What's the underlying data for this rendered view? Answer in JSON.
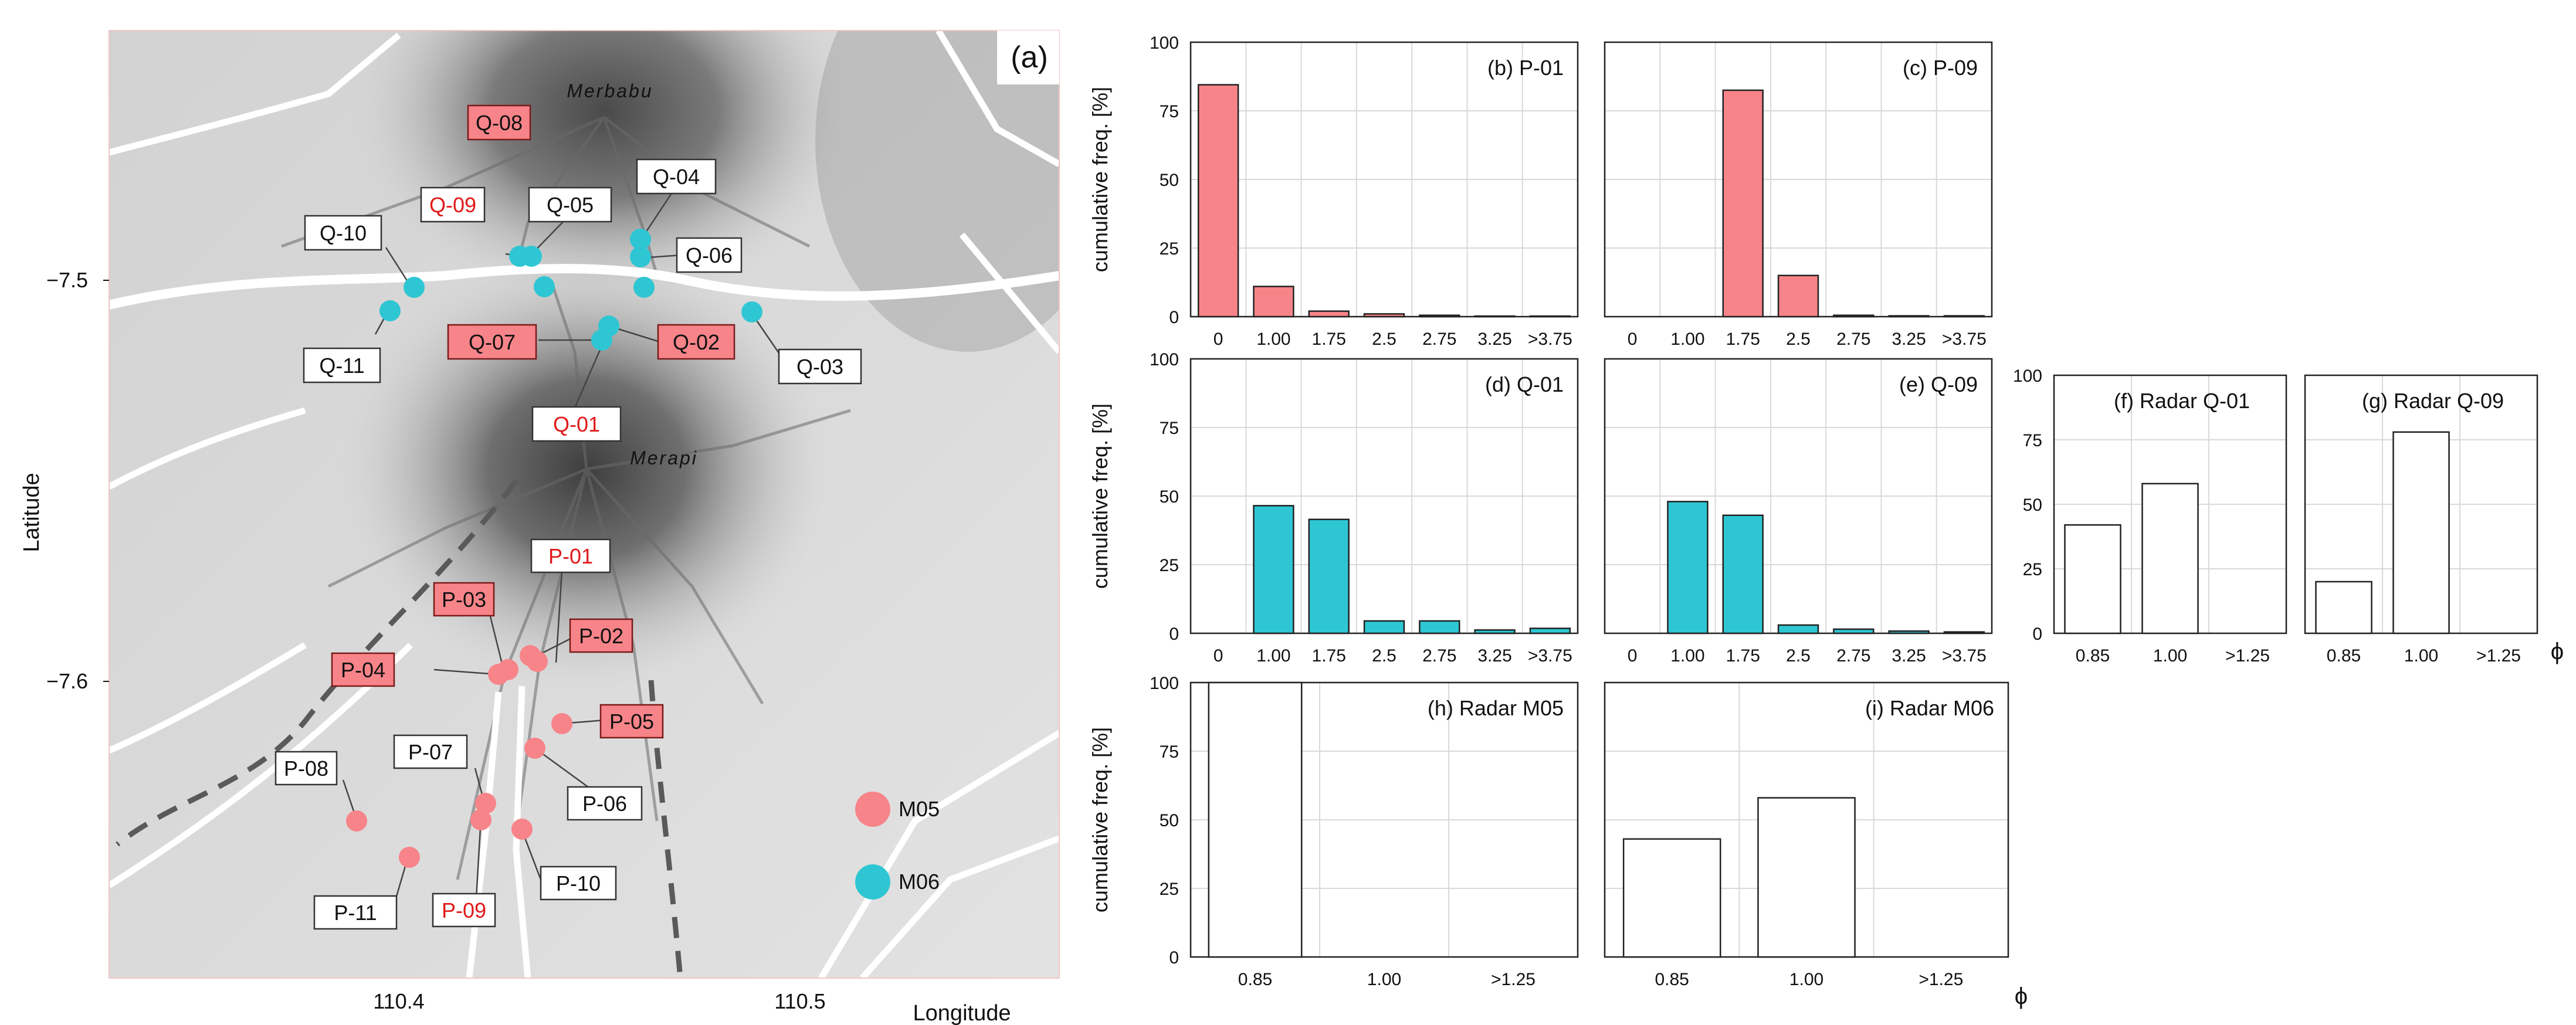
{
  "map": {
    "panel_label": "(a)",
    "xlabel": "Longitude",
    "ylabel": "Latitude",
    "xticks": [
      "110.4",
      "110.5"
    ],
    "yticks": [
      "−7.5",
      "−7.6"
    ],
    "volcanoes": [
      "Merbabu",
      "Merapi"
    ],
    "legend": [
      {
        "label": "M05",
        "color": "#f78489"
      },
      {
        "label": "M06",
        "color": "#2ec6d3"
      }
    ],
    "stations": [
      {
        "id": "Q-08",
        "style": "red-box",
        "lon": null,
        "lat": null
      },
      {
        "id": "Q-09",
        "style": "red-text",
        "lon": 110.432,
        "lat": -7.495
      },
      {
        "id": "Q-10",
        "style": "white",
        "lon": 110.401,
        "lat": -7.502
      },
      {
        "id": "Q-05",
        "style": "white",
        "lon": 110.434,
        "lat": -7.502
      },
      {
        "id": "Q-04",
        "style": "white",
        "lon": 110.463,
        "lat": -7.489
      },
      {
        "id": "Q-06",
        "style": "white",
        "lon": 110.464,
        "lat": -7.502
      },
      {
        "id": "Q-11",
        "style": "white",
        "lon": 110.395,
        "lat": -7.507
      },
      {
        "id": "Q-07",
        "style": "red-box",
        "lon": 110.451,
        "lat": -7.515
      },
      {
        "id": "Q-02",
        "style": "red-box",
        "lon": 110.453,
        "lat": -7.511
      },
      {
        "id": "Q-03",
        "style": "white",
        "lon": 110.49,
        "lat": -7.507
      },
      {
        "id": "Q-01",
        "style": "red-text",
        "lon": null,
        "lat": null
      },
      {
        "id": "P-01",
        "style": "red-text",
        "lon": null,
        "lat": null
      },
      {
        "id": "P-03",
        "style": "red-box",
        "lon": 110.425,
        "lat": -7.598
      },
      {
        "id": "P-02",
        "style": "red-box",
        "lon": 110.431,
        "lat": -7.593
      },
      {
        "id": "P-04",
        "style": "red-box",
        "lon": 110.424,
        "lat": -7.598
      },
      {
        "id": "P-05",
        "style": "red-box",
        "lon": 110.437,
        "lat": -7.61
      },
      {
        "id": "P-07",
        "style": "white",
        "lon": 110.423,
        "lat": -7.63
      },
      {
        "id": "P-08",
        "style": "white",
        "lon": 110.388,
        "lat": -7.635
      },
      {
        "id": "P-06",
        "style": "white",
        "lon": 110.432,
        "lat": -7.617
      },
      {
        "id": "P-10",
        "style": "white",
        "lon": 110.425,
        "lat": -7.638
      },
      {
        "id": "P-11",
        "style": "white",
        "lon": 110.399,
        "lat": -7.644
      },
      {
        "id": "P-09",
        "style": "red-text",
        "lon": 110.42,
        "lat": -7.634
      }
    ]
  },
  "chart_data": [
    {
      "id": "b",
      "type": "bar",
      "title": "(b) P-01",
      "ylabel": "cumulative freq. [%]",
      "ylim": [
        0,
        100
      ],
      "yticks": [
        "0",
        "25",
        "50",
        "75",
        "100"
      ],
      "categories": [
        "0",
        "1.00",
        "1.75",
        "2.5",
        "2.75",
        "3.25",
        ">3.75"
      ],
      "values": [
        84.5,
        11,
        2,
        1,
        0.5,
        0.2,
        0.2
      ],
      "color": "#f78489"
    },
    {
      "id": "c",
      "type": "bar",
      "title": "(c) P-09",
      "ylabel": "",
      "ylim": [
        0,
        100
      ],
      "yticks": [],
      "categories": [
        "0",
        "1.00",
        "1.75",
        "2.5",
        "2.75",
        "3.25",
        ">3.75"
      ],
      "values": [
        0,
        0,
        82.5,
        15,
        0.5,
        0.3,
        0.3
      ],
      "color": "#f78489"
    },
    {
      "id": "d",
      "type": "bar",
      "title": "(d) Q-01",
      "ylabel": "cumulative freq. [%]",
      "ylim": [
        0,
        100
      ],
      "yticks": [
        "0",
        "25",
        "50",
        "75",
        "100"
      ],
      "categories": [
        "0",
        "1.00",
        "1.75",
        "2.5",
        "2.75",
        "3.25",
        ">3.75"
      ],
      "values": [
        0,
        46.5,
        41.5,
        4.5,
        4.5,
        1.2,
        1.8
      ],
      "color": "#2ec6d3"
    },
    {
      "id": "e",
      "type": "bar",
      "title": "(e) Q-09",
      "ylabel": "",
      "ylim": [
        0,
        100
      ],
      "yticks": [],
      "categories": [
        "0",
        "1.00",
        "1.75",
        "2.5",
        "2.75",
        "3.25",
        ">3.75"
      ],
      "values": [
        0,
        48,
        43,
        3,
        1.5,
        0.8,
        0.5
      ],
      "color": "#2ec6d3"
    },
    {
      "id": "f",
      "type": "bar",
      "title": "(f) Radar Q-01",
      "ylabel": "",
      "ylim": [
        0,
        100
      ],
      "yticks": [
        "0",
        "25",
        "50",
        "75",
        "100"
      ],
      "categories": [
        "0.85",
        "1.00",
        ">1.25"
      ],
      "values": [
        42,
        58,
        0
      ],
      "color": "#ffffff"
    },
    {
      "id": "g",
      "type": "bar",
      "title": "(g) Radar Q-09",
      "ylabel": "",
      "ylim": [
        0,
        100
      ],
      "yticks": [],
      "categories": [
        "0.85",
        "1.00",
        ">1.25"
      ],
      "values": [
        20,
        78,
        0
      ],
      "color": "#ffffff",
      "xlabel": "ϕ"
    },
    {
      "id": "h",
      "type": "bar",
      "title": "(h) Radar M05",
      "ylabel": "cumulative freq. [%]",
      "ylim": [
        0,
        100
      ],
      "yticks": [
        "0",
        "25",
        "50",
        "75",
        "100"
      ],
      "categories": [
        "0.85",
        "1.00",
        ">1.25"
      ],
      "values": [
        100,
        0,
        0
      ],
      "color": "#ffffff"
    },
    {
      "id": "i",
      "type": "bar",
      "title": "(i) Radar M06",
      "ylabel": "",
      "ylim": [
        0,
        100
      ],
      "yticks": [],
      "categories": [
        "0.85",
        "1.00",
        ">1.25"
      ],
      "values": [
        43,
        58,
        0
      ],
      "color": "#ffffff",
      "xlabel": "ϕ"
    }
  ]
}
